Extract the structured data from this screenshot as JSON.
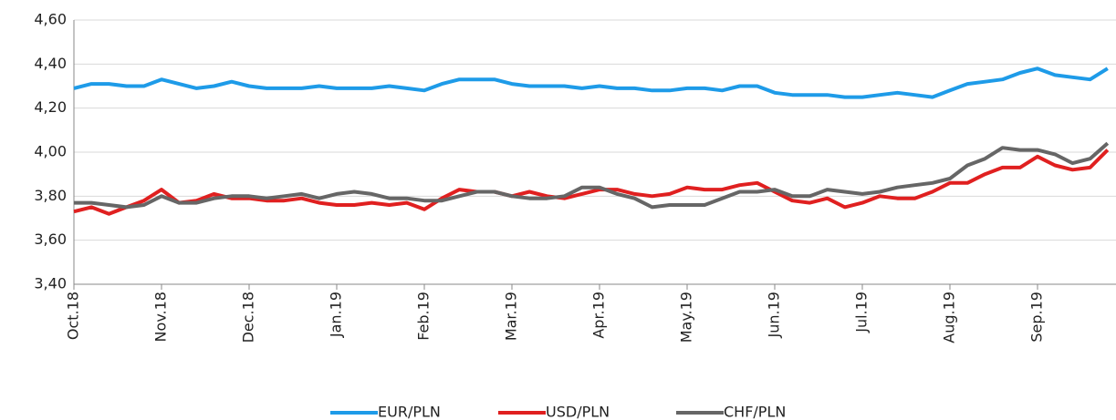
{
  "chart_data": {
    "type": "line",
    "categories": [
      "Oct.18",
      null,
      null,
      null,
      null,
      "Nov.18",
      null,
      null,
      null,
      null,
      "Dec.18",
      null,
      null,
      null,
      null,
      "Jan.19",
      null,
      null,
      null,
      null,
      "Feb.19",
      null,
      null,
      null,
      null,
      "Mar.19",
      null,
      null,
      null,
      null,
      "Apr.19",
      null,
      null,
      null,
      null,
      "May.19",
      null,
      null,
      null,
      null,
      "Jun.19",
      null,
      null,
      null,
      null,
      "Jul.19",
      null,
      null,
      null,
      null,
      "Aug.19",
      null,
      null,
      null,
      null,
      "Sep.19",
      null,
      null,
      null,
      null
    ],
    "series": [
      {
        "name": "EUR/PLN",
        "color": "#1e9be8",
        "values": [
          4.29,
          4.31,
          4.31,
          4.3,
          4.3,
          4.33,
          4.31,
          4.29,
          4.3,
          4.32,
          4.3,
          4.29,
          4.29,
          4.29,
          4.3,
          4.29,
          4.29,
          4.29,
          4.3,
          4.29,
          4.28,
          4.31,
          4.33,
          4.33,
          4.33,
          4.31,
          4.3,
          4.3,
          4.3,
          4.29,
          4.3,
          4.29,
          4.29,
          4.28,
          4.28,
          4.29,
          4.29,
          4.28,
          4.3,
          4.3,
          4.27,
          4.26,
          4.26,
          4.26,
          4.25,
          4.25,
          4.26,
          4.27,
          4.26,
          4.25,
          4.28,
          4.31,
          4.32,
          4.33,
          4.36,
          4.38,
          4.35,
          4.34,
          4.33,
          4.38
        ]
      },
      {
        "name": "USD/PLN",
        "color": "#e02020",
        "values": [
          3.73,
          3.75,
          3.72,
          3.75,
          3.78,
          3.83,
          3.77,
          3.78,
          3.81,
          3.79,
          3.79,
          3.78,
          3.78,
          3.79,
          3.77,
          3.76,
          3.76,
          3.77,
          3.76,
          3.77,
          3.74,
          3.79,
          3.83,
          3.82,
          3.82,
          3.8,
          3.82,
          3.8,
          3.79,
          3.81,
          3.83,
          3.83,
          3.81,
          3.8,
          3.81,
          3.84,
          3.83,
          3.83,
          3.85,
          3.86,
          3.82,
          3.78,
          3.77,
          3.79,
          3.75,
          3.77,
          3.8,
          3.79,
          3.79,
          3.82,
          3.86,
          3.86,
          3.9,
          3.93,
          3.93,
          3.98,
          3.94,
          3.92,
          3.93,
          4.01
        ]
      },
      {
        "name": "CHF/PLN",
        "color": "#666666",
        "values": [
          3.77,
          3.77,
          3.76,
          3.75,
          3.76,
          3.8,
          3.77,
          3.77,
          3.79,
          3.8,
          3.8,
          3.79,
          3.8,
          3.81,
          3.79,
          3.81,
          3.82,
          3.81,
          3.79,
          3.79,
          3.78,
          3.78,
          3.8,
          3.82,
          3.82,
          3.8,
          3.79,
          3.79,
          3.8,
          3.84,
          3.84,
          3.81,
          3.79,
          3.75,
          3.76,
          3.76,
          3.76,
          3.79,
          3.82,
          3.82,
          3.83,
          3.8,
          3.8,
          3.83,
          3.82,
          3.81,
          3.82,
          3.84,
          3.85,
          3.86,
          3.88,
          3.94,
          3.97,
          4.02,
          4.01,
          4.01,
          3.99,
          3.95,
          3.97,
          4.04
        ]
      }
    ],
    "ylim": [
      3.4,
      4.6
    ],
    "yticks": [
      {
        "value": 3.4,
        "label": "3,40"
      },
      {
        "value": 3.6,
        "label": "3,60"
      },
      {
        "value": 3.8,
        "label": "3,80"
      },
      {
        "value": 4.0,
        "label": "4,00"
      },
      {
        "value": 4.2,
        "label": "4,20"
      },
      {
        "value": 4.4,
        "label": "4,40"
      },
      {
        "value": 4.6,
        "label": "4,60"
      }
    ],
    "grid": true,
    "legend": "bottom"
  }
}
